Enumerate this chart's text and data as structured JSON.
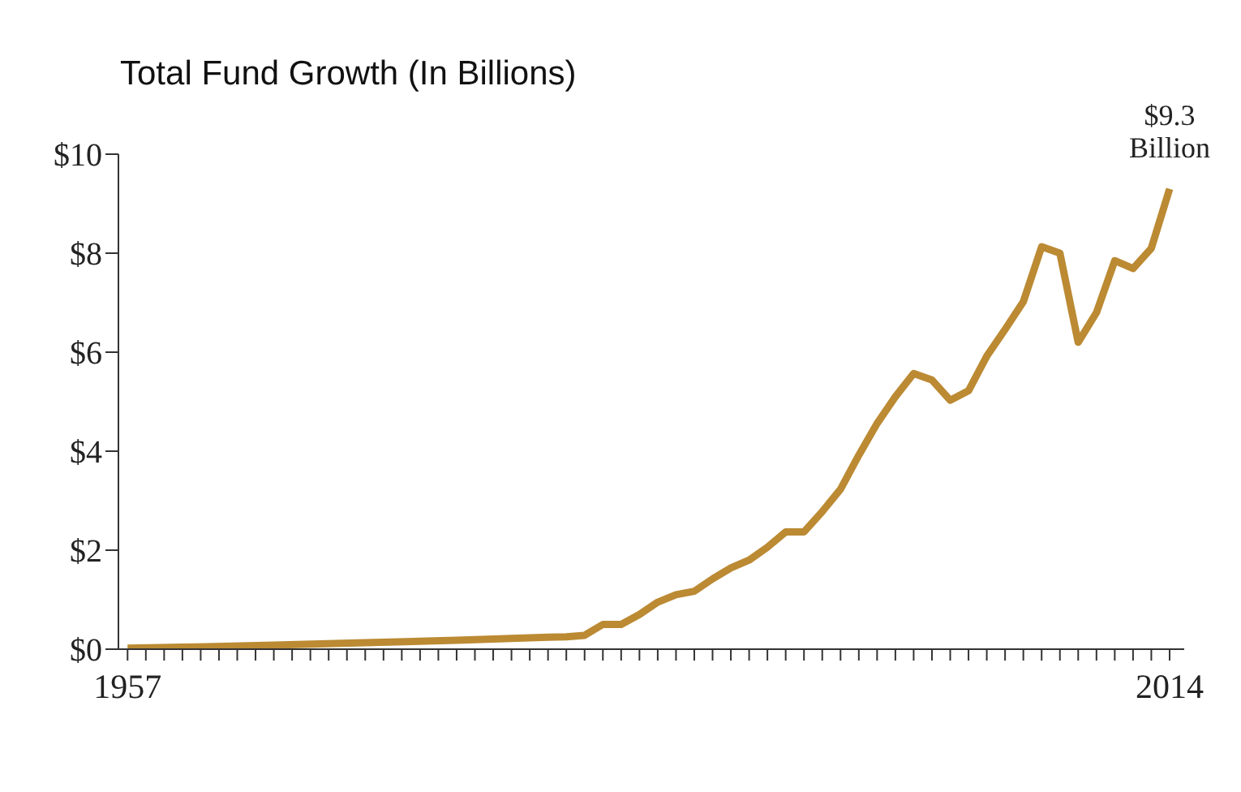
{
  "chart_data": {
    "type": "line",
    "title": "Total Fund Growth (In Billions)",
    "x": [
      1957,
      1960,
      1965,
      1970,
      1975,
      1980,
      1981,
      1982,
      1983,
      1984,
      1985,
      1986,
      1987,
      1988,
      1989,
      1990,
      1991,
      1992,
      1993,
      1994,
      1995,
      1996,
      1997,
      1998,
      1999,
      2000,
      2001,
      2002,
      2003,
      2004,
      2005,
      2006,
      2007,
      2008,
      2009,
      2010,
      2011,
      2012,
      2013,
      2014
    ],
    "series": [
      {
        "color": "#bb8a33",
        "values": [
          0.02,
          0.04,
          0.08,
          0.13,
          0.18,
          0.24,
          0.25,
          0.28,
          0.5,
          0.5,
          0.7,
          0.95,
          1.1,
          1.17,
          1.42,
          1.64,
          1.8,
          2.06,
          2.37,
          2.37,
          2.78,
          3.23,
          3.92,
          4.56,
          5.1,
          5.57,
          5.44,
          5.03,
          5.22,
          5.92,
          6.46,
          7.02,
          8.13,
          8.0,
          6.2,
          6.8,
          7.85,
          7.69,
          8.1,
          9.3
        ]
      }
    ],
    "xlim": [
      1956.5,
      2014.8
    ],
    "xticks": [
      {
        "value": 1957,
        "label": "1957"
      },
      {
        "value": 1958,
        "label": null
      },
      {
        "value": 1959,
        "label": null
      },
      {
        "value": 1960,
        "label": null
      },
      {
        "value": 1961,
        "label": null
      },
      {
        "value": 1962,
        "label": null
      },
      {
        "value": 1963,
        "label": null
      },
      {
        "value": 1964,
        "label": null
      },
      {
        "value": 1965,
        "label": null
      },
      {
        "value": 1966,
        "label": null
      },
      {
        "value": 1967,
        "label": null
      },
      {
        "value": 1968,
        "label": null
      },
      {
        "value": 1969,
        "label": null
      },
      {
        "value": 1970,
        "label": null
      },
      {
        "value": 1971,
        "label": null
      },
      {
        "value": 1972,
        "label": null
      },
      {
        "value": 1973,
        "label": null
      },
      {
        "value": 1974,
        "label": null
      },
      {
        "value": 1975,
        "label": null
      },
      {
        "value": 1976,
        "label": null
      },
      {
        "value": 1977,
        "label": null
      },
      {
        "value": 1978,
        "label": null
      },
      {
        "value": 1979,
        "label": null
      },
      {
        "value": 1980,
        "label": null
      },
      {
        "value": 1981,
        "label": null
      },
      {
        "value": 1982,
        "label": null
      },
      {
        "value": 1983,
        "label": null
      },
      {
        "value": 1984,
        "label": null
      },
      {
        "value": 1985,
        "label": null
      },
      {
        "value": 1986,
        "label": null
      },
      {
        "value": 1987,
        "label": null
      },
      {
        "value": 1988,
        "label": null
      },
      {
        "value": 1989,
        "label": null
      },
      {
        "value": 1990,
        "label": null
      },
      {
        "value": 1991,
        "label": null
      },
      {
        "value": 1992,
        "label": null
      },
      {
        "value": 1993,
        "label": null
      },
      {
        "value": 1994,
        "label": null
      },
      {
        "value": 1995,
        "label": null
      },
      {
        "value": 1996,
        "label": null
      },
      {
        "value": 1997,
        "label": null
      },
      {
        "value": 1998,
        "label": null
      },
      {
        "value": 1999,
        "label": null
      },
      {
        "value": 2000,
        "label": null
      },
      {
        "value": 2001,
        "label": null
      },
      {
        "value": 2002,
        "label": null
      },
      {
        "value": 2003,
        "label": null
      },
      {
        "value": 2004,
        "label": null
      },
      {
        "value": 2005,
        "label": null
      },
      {
        "value": 2006,
        "label": null
      },
      {
        "value": 2007,
        "label": null
      },
      {
        "value": 2008,
        "label": null
      },
      {
        "value": 2009,
        "label": null
      },
      {
        "value": 2010,
        "label": null
      },
      {
        "value": 2011,
        "label": null
      },
      {
        "value": 2012,
        "label": null
      },
      {
        "value": 2013,
        "label": null
      },
      {
        "value": 2014,
        "label": "2014"
      }
    ],
    "ylim": [
      0,
      10
    ],
    "yticks": [
      {
        "value": 0,
        "label": "$0"
      },
      {
        "value": 2,
        "label": "$2"
      },
      {
        "value": 4,
        "label": "$4"
      },
      {
        "value": 6,
        "label": "$6"
      },
      {
        "value": 8,
        "label": "$8"
      },
      {
        "value": 10,
        "label": "$10"
      }
    ],
    "grid": false,
    "legend": false,
    "marker": "none",
    "line_style": "solid",
    "annotations": [
      {
        "text": "$9.3\nBillion",
        "x": 2014,
        "y": 9.3
      }
    ]
  }
}
